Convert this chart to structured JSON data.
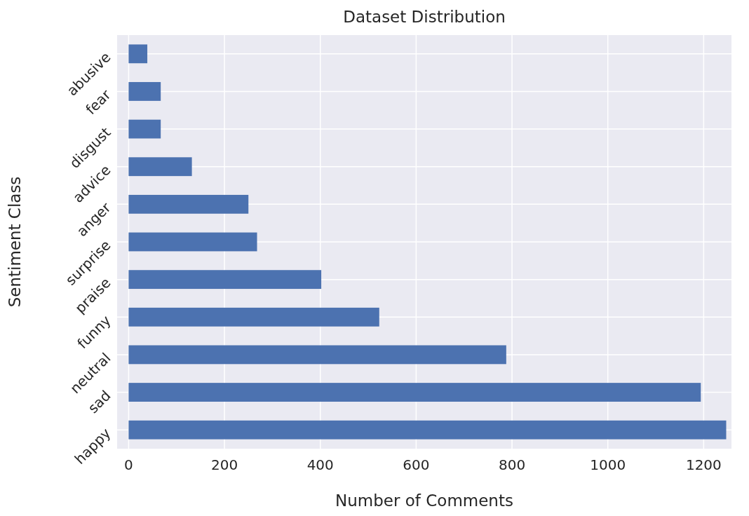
{
  "chart_data": {
    "type": "bar",
    "orientation": "horizontal",
    "title": "Dataset Distribution",
    "xlabel": "Number of Comments",
    "ylabel": "Sentiment Class",
    "categories": [
      "abusive",
      "fear",
      "disgust",
      "advice",
      "anger",
      "surprise",
      "praise",
      "funny",
      "neutral",
      "sad",
      "happy"
    ],
    "values": [
      39,
      67,
      67,
      132,
      250,
      268,
      402,
      523,
      788,
      1194,
      1247
    ],
    "color": "#4c72b0",
    "xlim": [
      -24,
      1258
    ],
    "xticks": [
      0,
      200,
      400,
      600,
      800,
      1000,
      1200
    ],
    "grid": true
  }
}
